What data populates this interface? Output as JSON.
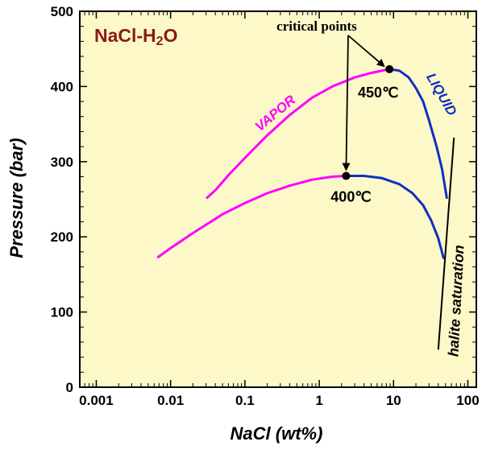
{
  "chart_data": {
    "type": "line",
    "xscale": "log",
    "xlim": [
      0.0006,
      130
    ],
    "ylim": [
      0,
      500
    ],
    "xlabel": "NaCl (wt%)",
    "ylabel": "Pressure (bar)",
    "x_ticks": [
      0.001,
      0.01,
      0.1,
      1,
      10,
      100
    ],
    "x_tick_labels": [
      "0.001",
      "0.01",
      "0.1",
      "1",
      "10",
      "100"
    ],
    "y_ticks": [
      0,
      100,
      200,
      300,
      400,
      500
    ],
    "y_tick_labels": [
      "0",
      "100",
      "200",
      "300",
      "400",
      "500"
    ],
    "grid": false,
    "background": "#fcf8c8",
    "system_label": {
      "text": "NaCl-H₂O",
      "color": "#8b1a1a"
    },
    "series": [
      {
        "phase": "vapor",
        "color": "#ff00ff",
        "temperature": "450℃",
        "x": [
          0.031,
          0.04,
          0.06,
          0.1,
          0.2,
          0.4,
          0.8,
          1.5,
          3,
          5,
          8.8
        ],
        "y": [
          252,
          262,
          282,
          305,
          335,
          362,
          385,
          400,
          412,
          418,
          423
        ]
      },
      {
        "phase": "liquid",
        "color": "#1030c0",
        "temperature": "450℃",
        "x": [
          8.8,
          12,
          16,
          20,
          25,
          30,
          38,
          45,
          52
        ],
        "y": [
          423,
          421,
          412,
          398,
          380,
          355,
          320,
          290,
          252
        ]
      },
      {
        "phase": "vapor",
        "color": "#ff00ff",
        "temperature": "400℃",
        "x": [
          0.0068,
          0.01,
          0.02,
          0.05,
          0.1,
          0.2,
          0.4,
          0.8,
          1.5,
          2.3
        ],
        "y": [
          173,
          185,
          205,
          230,
          245,
          258,
          268,
          276,
          280,
          281
        ]
      },
      {
        "phase": "liquid",
        "color": "#1030c0",
        "temperature": "400℃",
        "x": [
          2.3,
          4,
          7,
          12,
          18,
          25,
          32,
          40,
          47
        ],
        "y": [
          281,
          281,
          278,
          270,
          258,
          242,
          222,
          198,
          172
        ]
      }
    ],
    "halite_line": {
      "x": [
        40,
        65
      ],
      "y": [
        50,
        332
      ],
      "color": "#000000"
    },
    "critical_points": [
      {
        "x": 8.8,
        "y": 423,
        "label": "450℃"
      },
      {
        "x": 2.3,
        "y": 281,
        "label": "400℃"
      }
    ],
    "annotations": {
      "critical_points": "critical points",
      "vapor": "VAPOR",
      "liquid": "LIQUID",
      "halite": "halite saturation"
    }
  }
}
